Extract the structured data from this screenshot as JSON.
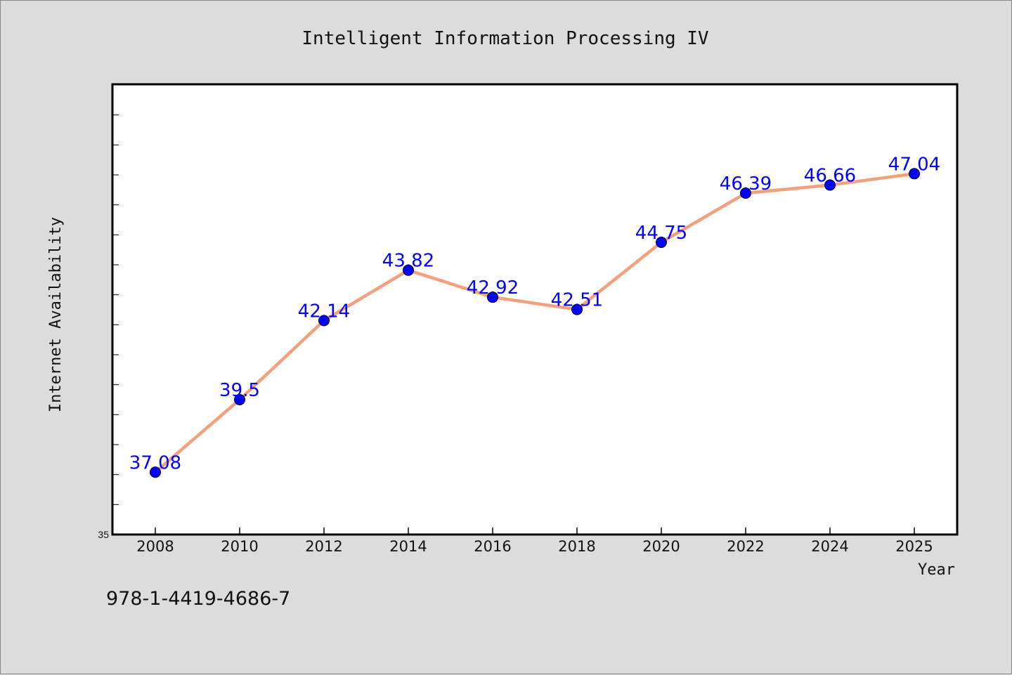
{
  "colors": {
    "background": "#dcdcdc",
    "plot_area": "#ffffff",
    "line": "#f4a07c",
    "marker": "#0000ff",
    "label": "#0000ff",
    "text": "#111111"
  },
  "footer": {
    "isbn": "978-1-4419-4686-7"
  },
  "chart_data": {
    "type": "line",
    "title": "Intelligent Information Processing IV",
    "xlabel": "Year",
    "ylabel": "Internet Availability",
    "ylim": [
      35,
      50
    ],
    "yticks_labeled": [
      "35"
    ],
    "y_minor_step": 1,
    "grid": false,
    "legend": "none",
    "categories": [
      "2008",
      "2010",
      "2012",
      "2014",
      "2016",
      "2018",
      "2020",
      "2022",
      "2024",
      "2025"
    ],
    "series": [
      {
        "values": [
          37.08,
          39.5,
          42.14,
          43.82,
          42.92,
          42.51,
          44.75,
          46.39,
          46.66,
          47.04
        ],
        "labels": [
          "37.08",
          "39.5",
          "42.14",
          "43.82",
          "42.92",
          "42.51",
          "44.75",
          "46.39",
          "46.66",
          "47.04"
        ]
      }
    ]
  }
}
